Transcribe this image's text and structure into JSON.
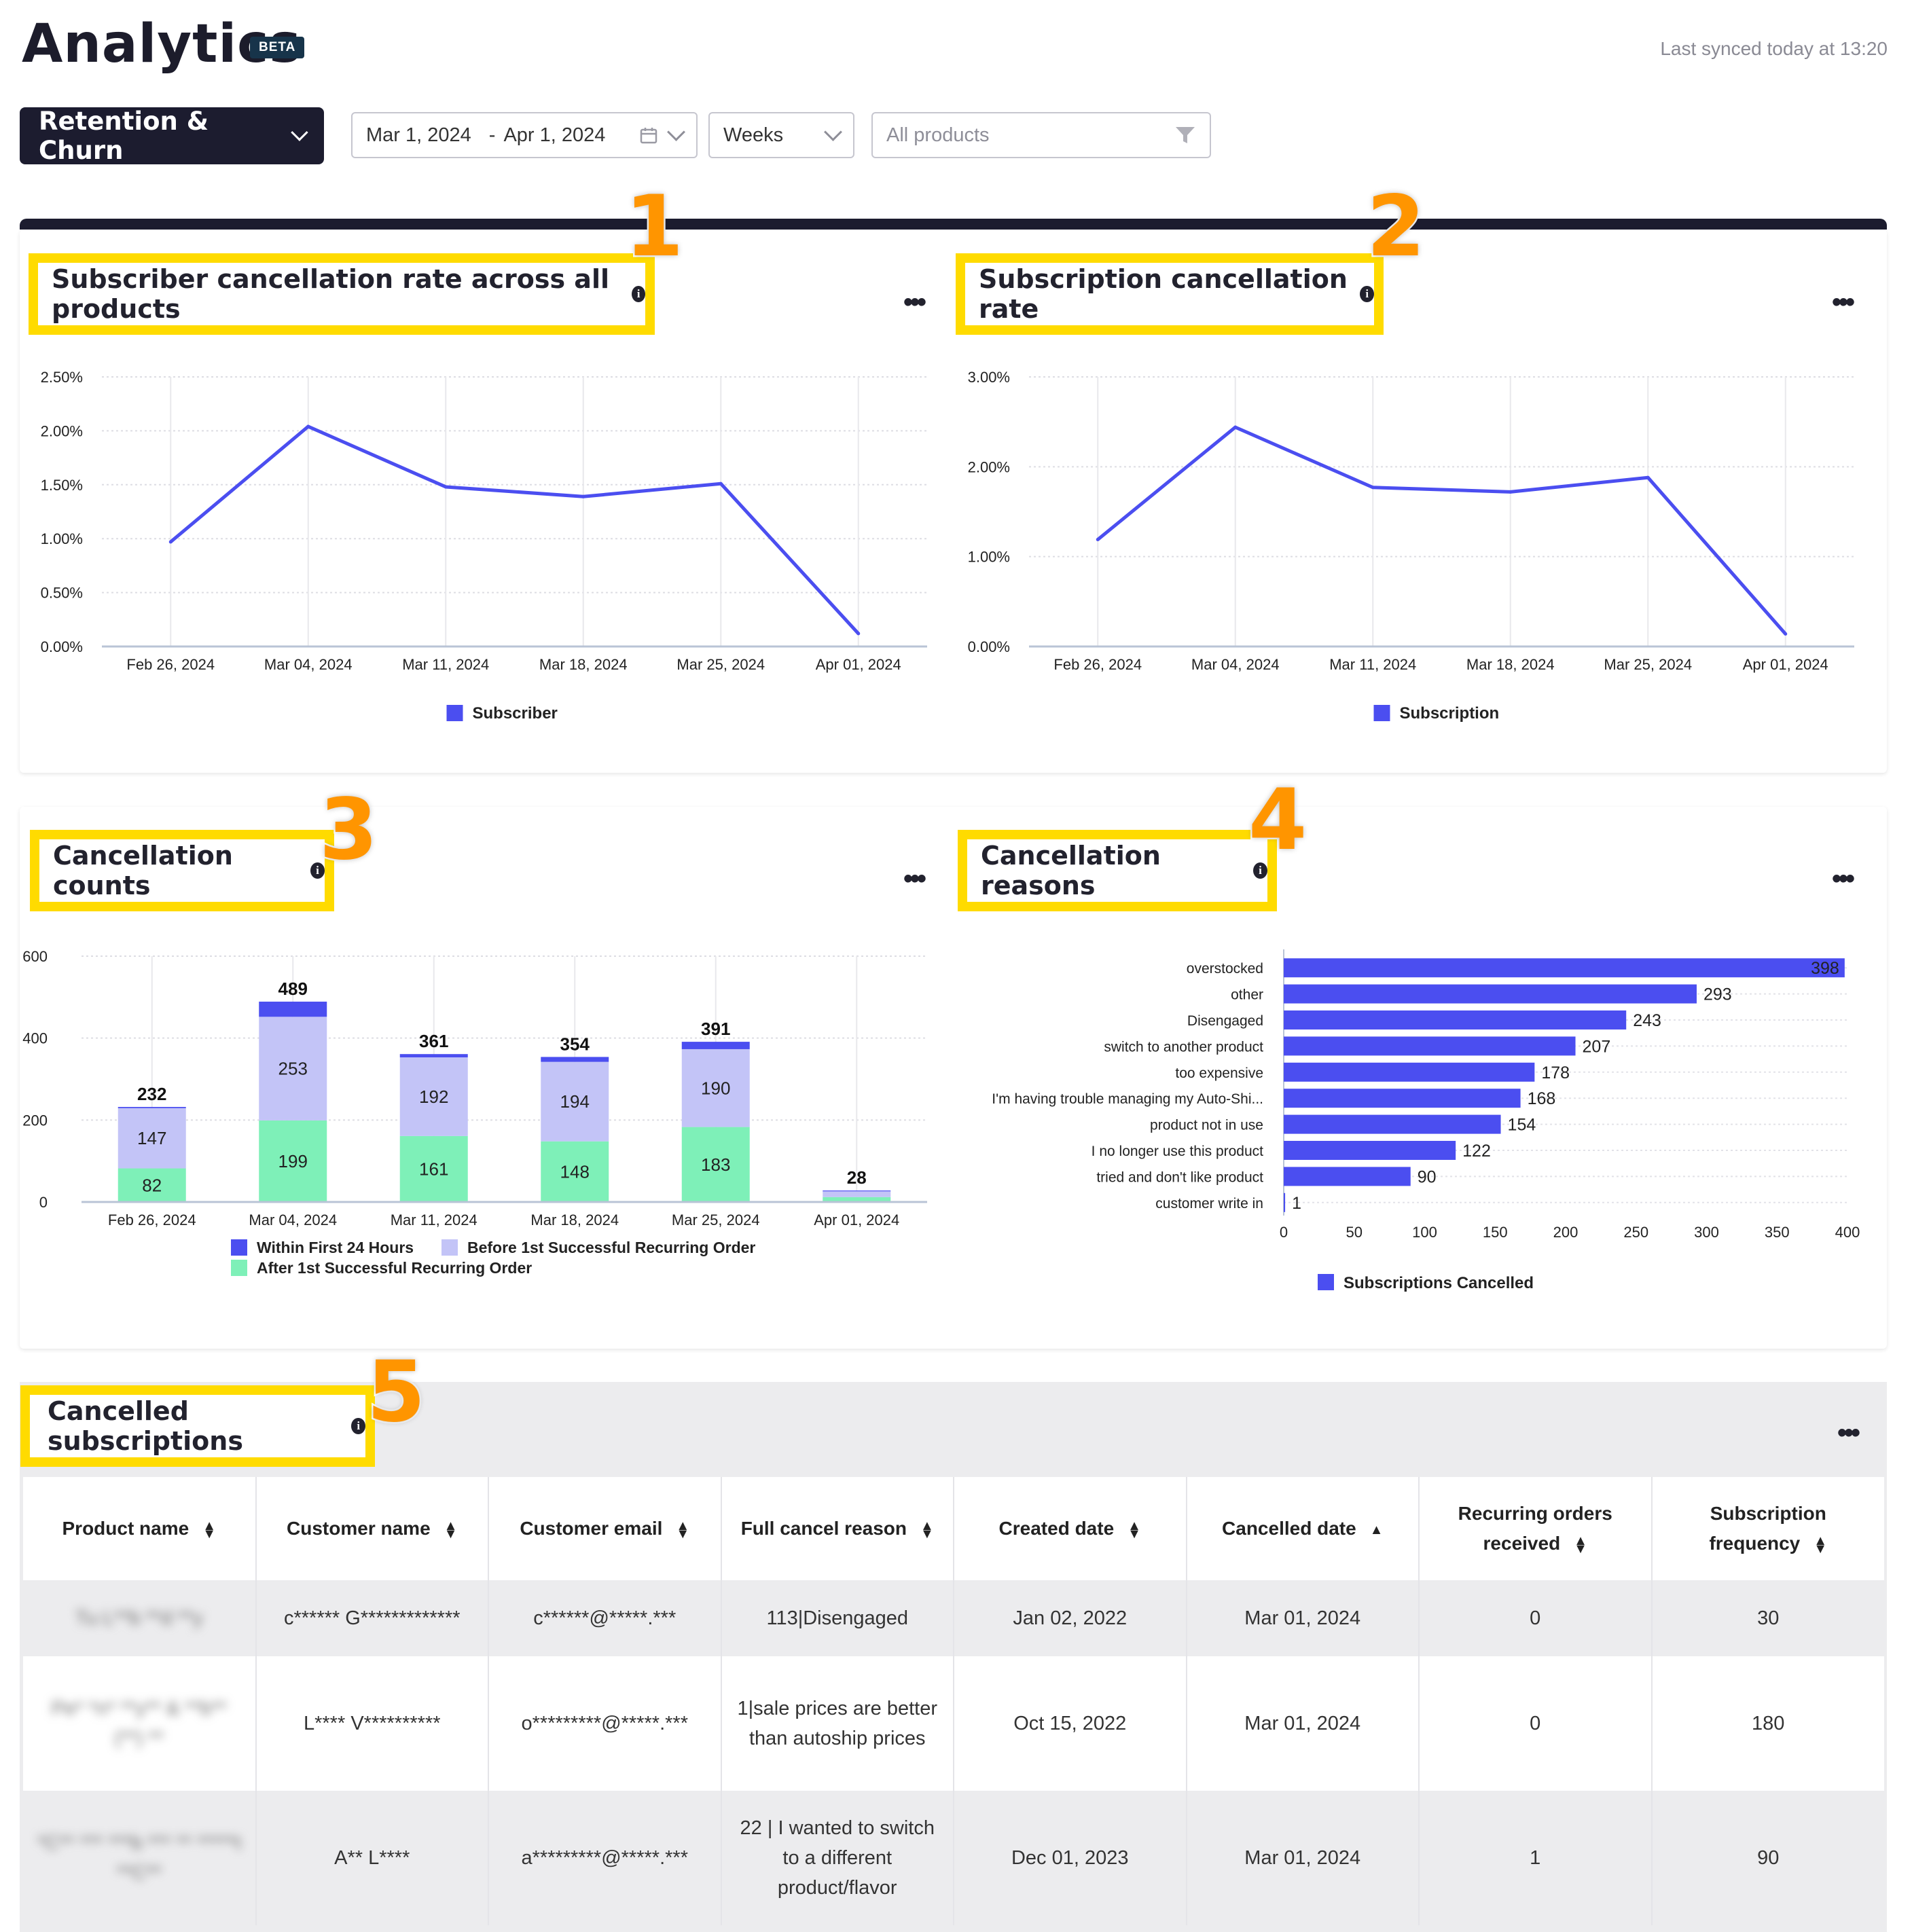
{
  "header": {
    "title": "Analytics",
    "badge": "BETA",
    "sync_status": "Last synced today at 13:20"
  },
  "filters": {
    "report": "Retention & Churn",
    "date_start": "Mar 1, 2024",
    "date_separator": "-",
    "date_end": "Apr 1, 2024",
    "granularity": "Weeks",
    "products_placeholder": "All products"
  },
  "annotations": [
    "1",
    "2",
    "3",
    "4",
    "5"
  ],
  "cards": {
    "subscriber_rate": {
      "title": "Subscriber cancellation rate across all products"
    },
    "subscription_rate": {
      "title": "Subscription cancellation rate"
    },
    "counts": {
      "title": "Cancellation counts"
    },
    "reasons": {
      "title": "Cancellation reasons"
    },
    "table": {
      "title": "Cancelled subscriptions"
    }
  },
  "menu_label": "•••",
  "chart_data": [
    {
      "type": "line",
      "title": "Subscriber cancellation rate across all products",
      "x": [
        "Feb 26, 2024",
        "Mar 04, 2024",
        "Mar 11, 2024",
        "Mar 18, 2024",
        "Mar 25, 2024",
        "Apr 01, 2024"
      ],
      "series": [
        {
          "name": "Subscriber",
          "values": [
            0.97,
            2.04,
            1.48,
            1.39,
            1.51,
            0.12
          ]
        }
      ],
      "yticks": [
        "0.00%",
        "0.50%",
        "1.00%",
        "1.50%",
        "2.00%",
        "2.50%"
      ],
      "ylim": [
        0,
        2.5
      ],
      "grid": true,
      "legend": "bottom-center",
      "color": "#4b4ef0"
    },
    {
      "type": "line",
      "title": "Subscription cancellation rate",
      "x": [
        "Feb 26, 2024",
        "Mar 04, 2024",
        "Mar 11, 2024",
        "Mar 18, 2024",
        "Mar 25, 2024",
        "Apr 01, 2024"
      ],
      "series": [
        {
          "name": "Subscription",
          "values": [
            1.19,
            2.44,
            1.77,
            1.72,
            1.88,
            0.14
          ]
        }
      ],
      "yticks": [
        "0.00%",
        "1.00%",
        "2.00%",
        "3.00%"
      ],
      "ylim": [
        0,
        3
      ],
      "grid": true,
      "legend": "bottom-center",
      "color": "#4b4ef0"
    },
    {
      "type": "bar",
      "stacked": true,
      "title": "Cancellation counts",
      "categories": [
        "Feb 26, 2024",
        "Mar 04, 2024",
        "Mar 11, 2024",
        "Mar 18, 2024",
        "Mar 25, 2024",
        "Apr 01, 2024"
      ],
      "series": [
        {
          "name": "After 1st Successful Recurring Order",
          "values": [
            82,
            199,
            161,
            148,
            183,
            12
          ],
          "color": "#7ef0b8"
        },
        {
          "name": "Before 1st Successful Recurring Order",
          "values": [
            147,
            253,
            192,
            194,
            190,
            14
          ],
          "color": "#c3c4f7"
        },
        {
          "name": "Within First 24 Hours",
          "values": [
            3,
            37,
            8,
            12,
            18,
            2
          ],
          "color": "#4b4ef0"
        }
      ],
      "segment_labels": [
        [
          "82",
          "147"
        ],
        [
          "199",
          "253"
        ],
        [
          "161",
          "192"
        ],
        [
          "148",
          "194"
        ],
        [
          "183",
          "190"
        ],
        [
          "",
          ""
        ]
      ],
      "totals": [
        232,
        489,
        361,
        354,
        391,
        28
      ],
      "yticks": [
        "0",
        "200",
        "400",
        "600"
      ],
      "ylim": [
        0,
        600
      ],
      "legend": "bottom-left"
    },
    {
      "type": "bar",
      "orientation": "horizontal",
      "title": "Cancellation reasons",
      "categories": [
        "overstocked",
        "other",
        "Disengaged",
        "switch to another product",
        "too expensive",
        "I'm having trouble managing my Auto-Shi...",
        "product not in use",
        "I no longer use this product",
        "tried and don't like product",
        "customer write in"
      ],
      "series": [
        {
          "name": "Subscriptions Cancelled",
          "values": [
            398,
            293,
            243,
            207,
            178,
            168,
            154,
            122,
            90,
            1
          ]
        }
      ],
      "xticks": [
        "0",
        "50",
        "100",
        "150",
        "200",
        "250",
        "300",
        "350",
        "400"
      ],
      "xlim": [
        0,
        400
      ],
      "legend": "bottom-center",
      "color": "#4b4ef0"
    }
  ],
  "table": {
    "columns": [
      "Product name",
      "Customer name",
      "Customer email",
      "Full cancel reason",
      "Created date",
      "Cancelled date",
      "Recurring orders received",
      "Subscription frequency"
    ],
    "rows": [
      {
        "product": "Tu L**b **d **y",
        "customer": "c****** G*************",
        "email": "c******@*****.***",
        "reason": "113|Disengaged",
        "created": "Jan 02, 2022",
        "cancelled": "Mar 01, 2024",
        "orders": "0",
        "frequency": "30"
      },
      {
        "product": "Pe* *n* **y** & **b** (**) **",
        "customer": "L**** V**********",
        "email": "o*********@*****.***",
        "reason": "1|sale prices are better than autoship prices",
        "created": "Oct 15, 2022",
        "cancelled": "Mar 01, 2024",
        "orders": "0",
        "frequency": "180"
      },
      {
        "product": "*C** *** ***b *** ** *****t **C**",
        "customer": "A** L****",
        "email": "a*********@*****.***",
        "reason": "22 | I wanted to switch to a different product/flavor",
        "created": "Dec 01, 2023",
        "cancelled": "Mar 01, 2024",
        "orders": "1",
        "frequency": "90"
      }
    ]
  }
}
